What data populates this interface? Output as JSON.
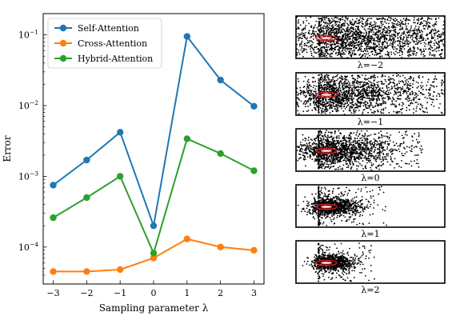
{
  "chart_data": [
    {
      "type": "line",
      "xlabel": "Sampling parameter λ",
      "ylabel": "Error",
      "yscale": "log",
      "x": [
        -3,
        -2,
        -1,
        0,
        1,
        2,
        3
      ],
      "x_tick_labels": [
        "−3",
        "−2",
        "−1",
        "0",
        "1",
        "2",
        "3"
      ],
      "ylim": [
        3e-05,
        0.2
      ],
      "y_ticks": [
        {
          "value": 0.1,
          "label": "10",
          "exp": "−1"
        },
        {
          "value": 0.01,
          "label": "10",
          "exp": "−2"
        },
        {
          "value": 0.001,
          "label": "10",
          "exp": "−3"
        },
        {
          "value": 0.0001,
          "label": "10",
          "exp": "−4"
        }
      ],
      "legend_position": "top-left",
      "series": [
        {
          "name": "Self-Attention",
          "color": "#1f77b4",
          "values": [
            0.00075,
            0.0017,
            0.0042,
            0.0002,
            0.095,
            0.023,
            0.0098
          ]
        },
        {
          "name": "Cross-Attention",
          "color": "#ff7f0e",
          "values": [
            4.5e-05,
            4.5e-05,
            4.8e-05,
            7e-05,
            0.00013,
            0.0001,
            9e-05
          ]
        },
        {
          "name": "Hybrid-Attention",
          "color": "#2ca02c",
          "values": [
            0.00026,
            0.0005,
            0.001,
            8.2e-05,
            0.0034,
            0.0021,
            0.0012
          ]
        }
      ]
    },
    {
      "type": "scatter",
      "panels": [
        {
          "label": "λ=−2",
          "spread": 1.0
        },
        {
          "label": "λ=−1",
          "spread": 0.75
        },
        {
          "label": "λ=0",
          "spread": 0.5
        },
        {
          "label": "λ=1",
          "spread": 0.2
        },
        {
          "label": "λ=2",
          "spread": 0.12
        }
      ]
    }
  ]
}
